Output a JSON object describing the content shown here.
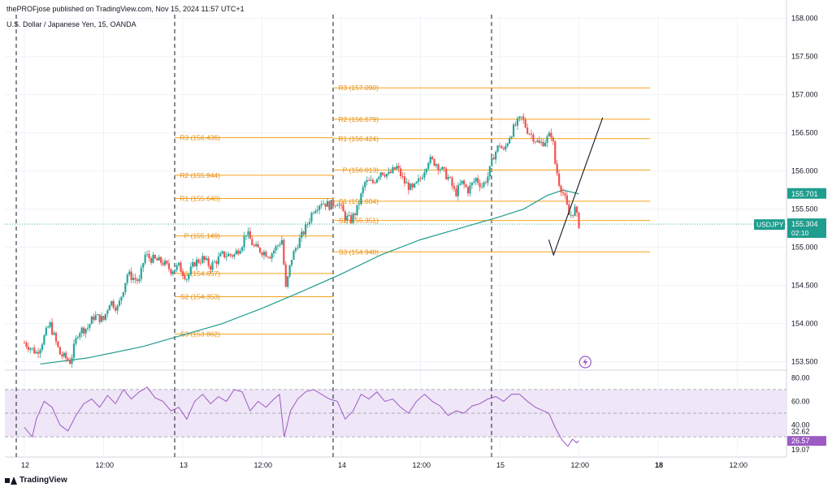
{
  "header": {
    "publisher_line": "thePROFjose published on TradingView.com, Nov 15, 2024 11:57 UTC+1",
    "symbol_line": "U.S. Dollar / Japanese Yen, 15, OANDA"
  },
  "footer": {
    "brand": "TradingView"
  },
  "colors": {
    "up": "#26a69a",
    "down": "#ef5350",
    "pivot": "#f7a21b",
    "pivot_text": "#e58d0b",
    "ma": "#1f9d8e",
    "rsi": "#9c5bc4",
    "rsi_band": "#efe6f7",
    "grid": "#f0f3fa",
    "axis_text": "#131722",
    "session_line": "#131722"
  },
  "chart_data": {
    "type": "candlestick",
    "symbol": "USDJPY",
    "timeframe": "15",
    "y_range": [
      153.4,
      158.05
    ],
    "y_ticks": [
      "158.000",
      "157.500",
      "157.000",
      "156.500",
      "156.000",
      "155.500",
      "155.000",
      "154.500",
      "154.000",
      "153.500"
    ],
    "x_ticks": [
      "12",
      "12:00",
      "13",
      "12:00",
      "14",
      "12:00",
      "15",
      "12:00",
      "18",
      "12:00"
    ],
    "x_domain": [
      0,
      10
    ],
    "x_tick_positions": [
      0,
      1,
      2,
      3,
      4,
      5,
      6,
      7,
      8,
      9
    ],
    "bold_ticks": [
      "18"
    ],
    "session_breaks": [
      0,
      2,
      4,
      6
    ],
    "price_badges": [
      {
        "label": "",
        "value": "155.701",
        "color": "#1f9d8e"
      },
      {
        "label": "USDJPY",
        "value": "155.304",
        "sub": "02:10",
        "color": "#1f9d8e"
      }
    ],
    "current_price": 155.304,
    "pivot_levels": [
      {
        "label": "R3 (156.436)",
        "value": 156.436,
        "x0": 2.0,
        "x1": 4.0
      },
      {
        "label": "R2 (155.944)",
        "value": 155.944,
        "x0": 2.0,
        "x1": 4.0
      },
      {
        "label": "R1 (155.640)",
        "value": 155.64,
        "x0": 2.0,
        "x1": 4.0
      },
      {
        "label": "P (155.149)",
        "value": 155.149,
        "x0": 2.0,
        "x1": 4.0
      },
      {
        "label": "S1 (154.657)",
        "value": 154.657,
        "x0": 2.0,
        "x1": 4.0
      },
      {
        "label": "S2 (154.353)",
        "value": 154.353,
        "x0": 2.0,
        "x1": 4.0
      },
      {
        "label": "S3 (153.862)",
        "value": 153.862,
        "x0": 2.0,
        "x1": 4.0
      },
      {
        "label": "R3 (157.090)",
        "value": 157.09,
        "x0": 4.0,
        "x1": 6.0
      },
      {
        "label": "R2 (156.679)",
        "value": 156.679,
        "x0": 4.0,
        "x1": 6.0
      },
      {
        "label": "R1 (156.424)",
        "value": 156.424,
        "x0": 4.0,
        "x1": 6.0
      },
      {
        "label": "P (156.013)",
        "value": 156.013,
        "x0": 4.0,
        "x1": 6.0
      },
      {
        "label": "S1 (155.604)",
        "value": 155.604,
        "x0": 4.0,
        "x1": 6.0
      },
      {
        "label": "S2 (155.351)",
        "value": 155.351,
        "x0": 4.0,
        "x1": 6.0
      },
      {
        "label": "S3 (154.940)",
        "value": 154.94,
        "x0": 4.0,
        "x1": 6.0
      }
    ],
    "price_path": [
      [
        0.0,
        153.75
      ],
      [
        0.15,
        153.62
      ],
      [
        0.2,
        153.7
      ],
      [
        0.32,
        154.0
      ],
      [
        0.45,
        153.6
      ],
      [
        0.58,
        153.5
      ],
      [
        0.68,
        153.9
      ],
      [
        0.8,
        153.95
      ],
      [
        0.88,
        154.1
      ],
      [
        1.0,
        154.05
      ],
      [
        1.08,
        154.3
      ],
      [
        1.18,
        154.2
      ],
      [
        1.3,
        154.65
      ],
      [
        1.45,
        154.55
      ],
      [
        1.52,
        154.9
      ],
      [
        1.6,
        154.85
      ],
      [
        1.75,
        154.8
      ],
      [
        1.85,
        154.7
      ],
      [
        1.95,
        154.75
      ],
      [
        2.05,
        154.6
      ],
      [
        2.15,
        154.8
      ],
      [
        2.25,
        154.85
      ],
      [
        2.35,
        154.75
      ],
      [
        2.5,
        154.9
      ],
      [
        2.65,
        154.9
      ],
      [
        2.75,
        155.05
      ],
      [
        2.8,
        155.2
      ],
      [
        2.9,
        155.0
      ],
      [
        3.0,
        154.95
      ],
      [
        3.1,
        154.9
      ],
      [
        3.18,
        155.0
      ],
      [
        3.25,
        155.1
      ],
      [
        3.3,
        154.45
      ],
      [
        3.37,
        154.85
      ],
      [
        3.45,
        155.05
      ],
      [
        3.55,
        155.25
      ],
      [
        3.65,
        155.5
      ],
      [
        3.75,
        155.6
      ],
      [
        3.85,
        155.55
      ],
      [
        3.95,
        155.6
      ],
      [
        4.05,
        155.4
      ],
      [
        4.12,
        155.35
      ],
      [
        4.2,
        155.5
      ],
      [
        4.3,
        155.85
      ],
      [
        4.4,
        155.85
      ],
      [
        4.5,
        156.0
      ],
      [
        4.6,
        155.95
      ],
      [
        4.7,
        156.05
      ],
      [
        4.8,
        155.85
      ],
      [
        4.9,
        155.75
      ],
      [
        5.0,
        155.9
      ],
      [
        5.1,
        156.15
      ],
      [
        5.2,
        156.1
      ],
      [
        5.28,
        156.0
      ],
      [
        5.36,
        155.9
      ],
      [
        5.44,
        155.7
      ],
      [
        5.52,
        155.85
      ],
      [
        5.6,
        155.75
      ],
      [
        5.7,
        155.9
      ],
      [
        5.78,
        155.8
      ],
      [
        5.86,
        155.95
      ],
      [
        5.92,
        156.2
      ],
      [
        6.0,
        156.35
      ],
      [
        6.05,
        156.25
      ],
      [
        6.12,
        156.45
      ],
      [
        6.2,
        156.6
      ],
      [
        6.28,
        156.7
      ],
      [
        6.34,
        156.55
      ],
      [
        6.42,
        156.45
      ],
      [
        6.5,
        156.35
      ],
      [
        6.58,
        156.4
      ],
      [
        6.66,
        156.5
      ],
      [
        6.7,
        156.1
      ],
      [
        6.75,
        155.85
      ],
      [
        6.82,
        155.65
      ],
      [
        6.88,
        155.4
      ],
      [
        6.95,
        155.5
      ],
      [
        7.0,
        155.3
      ]
    ],
    "moving_average": [
      [
        0.2,
        153.47
      ],
      [
        0.8,
        153.55
      ],
      [
        1.5,
        153.7
      ],
      [
        2.0,
        153.85
      ],
      [
        2.5,
        154.0
      ],
      [
        3.0,
        154.2
      ],
      [
        3.5,
        154.42
      ],
      [
        4.0,
        154.65
      ],
      [
        4.5,
        154.9
      ],
      [
        5.0,
        155.1
      ],
      [
        5.5,
        155.25
      ],
      [
        6.0,
        155.4
      ],
      [
        6.3,
        155.5
      ],
      [
        6.6,
        155.68
      ],
      [
        6.8,
        155.75
      ],
      [
        7.0,
        155.7
      ]
    ],
    "projection": [
      [
        6.62,
        155.1
      ],
      [
        6.68,
        154.9
      ],
      [
        7.3,
        156.7
      ]
    ],
    "rsi": {
      "range": [
        15,
        85
      ],
      "ticks": [
        "80.00",
        "60.00",
        "40.00"
      ],
      "badges": [
        {
          "value": "32.62",
          "color": "#ffffff"
        },
        {
          "value": "26.57",
          "color": "#9c5bc4"
        },
        {
          "value": "19.07",
          "color": "#ffffff"
        }
      ],
      "upper": 70,
      "middle": 50,
      "lower": 30,
      "series": [
        [
          0.0,
          38
        ],
        [
          0.1,
          30
        ],
        [
          0.15,
          45
        ],
        [
          0.25,
          60
        ],
        [
          0.35,
          55
        ],
        [
          0.45,
          40
        ],
        [
          0.55,
          35
        ],
        [
          0.65,
          48
        ],
        [
          0.75,
          58
        ],
        [
          0.85,
          62
        ],
        [
          0.95,
          55
        ],
        [
          1.05,
          65
        ],
        [
          1.15,
          58
        ],
        [
          1.25,
          70
        ],
        [
          1.35,
          62
        ],
        [
          1.45,
          68
        ],
        [
          1.55,
          72
        ],
        [
          1.65,
          63
        ],
        [
          1.75,
          60
        ],
        [
          1.85,
          52
        ],
        [
          1.95,
          55
        ],
        [
          2.05,
          45
        ],
        [
          2.15,
          60
        ],
        [
          2.25,
          66
        ],
        [
          2.35,
          58
        ],
        [
          2.45,
          64
        ],
        [
          2.55,
          60
        ],
        [
          2.65,
          70
        ],
        [
          2.75,
          68
        ],
        [
          2.85,
          52
        ],
        [
          2.95,
          60
        ],
        [
          3.05,
          55
        ],
        [
          3.15,
          62
        ],
        [
          3.22,
          66
        ],
        [
          3.28,
          30
        ],
        [
          3.36,
          52
        ],
        [
          3.45,
          62
        ],
        [
          3.55,
          68
        ],
        [
          3.65,
          70
        ],
        [
          3.75,
          66
        ],
        [
          3.85,
          62
        ],
        [
          3.95,
          60
        ],
        [
          4.05,
          45
        ],
        [
          4.15,
          52
        ],
        [
          4.25,
          66
        ],
        [
          4.35,
          62
        ],
        [
          4.45,
          68
        ],
        [
          4.55,
          60
        ],
        [
          4.65,
          62
        ],
        [
          4.75,
          55
        ],
        [
          4.85,
          50
        ],
        [
          4.95,
          60
        ],
        [
          5.05,
          66
        ],
        [
          5.15,
          60
        ],
        [
          5.25,
          56
        ],
        [
          5.35,
          48
        ],
        [
          5.45,
          52
        ],
        [
          5.55,
          50
        ],
        [
          5.65,
          56
        ],
        [
          5.75,
          58
        ],
        [
          5.85,
          62
        ],
        [
          5.95,
          64
        ],
        [
          6.05,
          60
        ],
        [
          6.15,
          66
        ],
        [
          6.25,
          66
        ],
        [
          6.35,
          60
        ],
        [
          6.45,
          55
        ],
        [
          6.55,
          52
        ],
        [
          6.62,
          50
        ],
        [
          6.7,
          38
        ],
        [
          6.78,
          28
        ],
        [
          6.86,
          22
        ],
        [
          6.92,
          28
        ],
        [
          6.97,
          25
        ],
        [
          7.0,
          26.57
        ]
      ]
    }
  }
}
